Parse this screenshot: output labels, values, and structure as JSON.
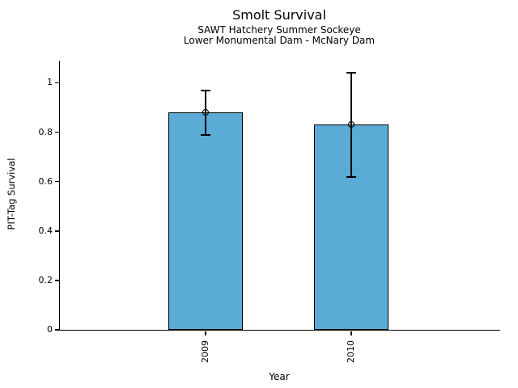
{
  "title": "Smolt Survival",
  "subtitle1": "SAWT Hatchery Summer Sockeye",
  "subtitle2": "Lower Monumental Dam - McNary Dam",
  "chart_data": {
    "type": "bar",
    "title": "Smolt Survival",
    "subtitle": [
      "SAWT Hatchery Summer Sockeye",
      "Lower Monumental Dam - McNary Dam"
    ],
    "categories": [
      "2009",
      "2010"
    ],
    "values": [
      0.88,
      0.83
    ],
    "error_low": [
      0.79,
      0.62
    ],
    "error_high": [
      0.97,
      1.04
    ],
    "xlabel": "Year",
    "ylabel": "PIT-Tag Survival",
    "ylim": [
      0,
      1.09
    ],
    "yticks": [
      0,
      0.2,
      0.4,
      0.6,
      0.8,
      1
    ],
    "ytick_labels": [
      "0",
      "0.2",
      "0.4",
      "0.6",
      "0.8",
      "1"
    ],
    "xtick_rotation": 90,
    "grid": "off",
    "legend": "none",
    "bar_color": "#5aabd6",
    "edge_color": "#000000",
    "error_bar_color": "#000000"
  }
}
